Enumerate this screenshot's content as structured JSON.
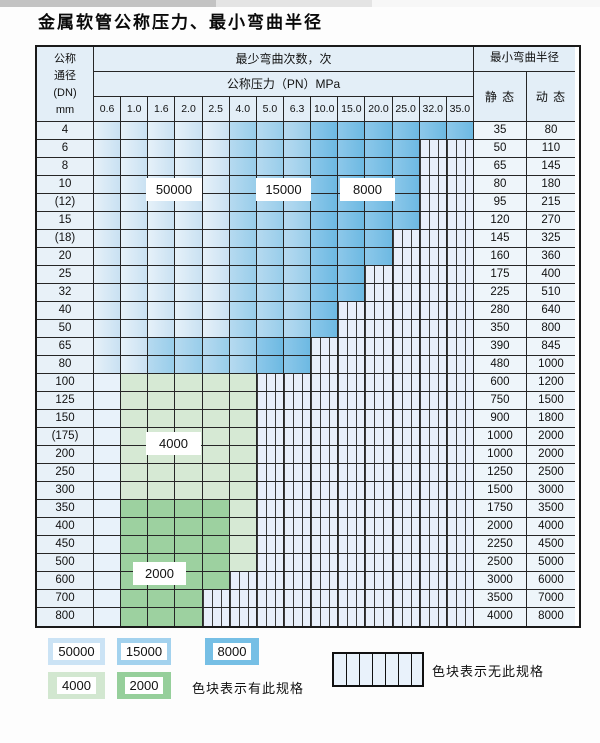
{
  "title": "金属软管公称压力、最小弯曲半径",
  "table": {
    "corner_header": [
      "公称",
      "通径",
      "(DN)",
      "mm"
    ],
    "bend_cycles_header": "最少弯曲次数，次",
    "pressure_header": "公称压力（PN）MPa",
    "radius_header": "最小弯曲半径",
    "static_label": "静 态",
    "dynamic_label": "动 态",
    "pressure_columns": [
      "0.6",
      "1.0",
      "1.6",
      "2.0",
      "2.5",
      "4.0",
      "5.0",
      "6.3",
      "10.0",
      "15.0",
      "20.0",
      "25.0",
      "32.0",
      "35.0"
    ],
    "zone_meaning": {
      "b1": "50000",
      "b2": "15000",
      "b3": "8000",
      "g1": "4000",
      "g2": "2000",
      "p": "50000",
      "x": "无此规格"
    },
    "overlays": [
      {
        "value": "50000"
      },
      {
        "value": "15000"
      },
      {
        "value": "8000"
      },
      {
        "value": "4000"
      },
      {
        "value": "2000"
      }
    ],
    "rows": [
      {
        "dn": "4",
        "cells": [
          "b1",
          "b1",
          "b1",
          "b1",
          "b1",
          "b2",
          "b2",
          "b2",
          "b3",
          "b3",
          "b3",
          "b3",
          "b3",
          "b3"
        ],
        "static": "35",
        "dynamic": "80"
      },
      {
        "dn": "6",
        "cells": [
          "b1",
          "b1",
          "b1",
          "b1",
          "b1",
          "b2",
          "b2",
          "b2",
          "b3",
          "b3",
          "b3",
          "b3",
          "x",
          "x"
        ],
        "static": "50",
        "dynamic": "110"
      },
      {
        "dn": "8",
        "cells": [
          "b1",
          "b1",
          "b1",
          "b1",
          "b1",
          "b2",
          "b2",
          "b2",
          "b3",
          "b3",
          "b3",
          "b3",
          "x",
          "x"
        ],
        "static": "65",
        "dynamic": "145"
      },
      {
        "dn": "10",
        "cells": [
          "b1",
          "b1",
          "b1",
          "b1",
          "b1",
          "b2",
          "b2",
          "b2",
          "b3",
          "b3",
          "b3",
          "b3",
          "x",
          "x"
        ],
        "static": "80",
        "dynamic": "180"
      },
      {
        "dn": "(12)",
        "cells": [
          "b1",
          "b1",
          "b1",
          "b1",
          "b1",
          "b2",
          "b2",
          "b2",
          "b3",
          "b3",
          "b3",
          "b3",
          "x",
          "x"
        ],
        "static": "95",
        "dynamic": "215"
      },
      {
        "dn": "15",
        "cells": [
          "b1",
          "b1",
          "b1",
          "b1",
          "b1",
          "b2",
          "b2",
          "b2",
          "b3",
          "b3",
          "b3",
          "b3",
          "x",
          "x"
        ],
        "static": "120",
        "dynamic": "270"
      },
      {
        "dn": "(18)",
        "cells": [
          "b1",
          "b1",
          "b1",
          "b1",
          "b1",
          "b2",
          "b2",
          "b2",
          "b3",
          "b3",
          "b3",
          "x",
          "x",
          "x"
        ],
        "static": "145",
        "dynamic": "325"
      },
      {
        "dn": "20",
        "cells": [
          "b1",
          "b1",
          "b1",
          "b1",
          "b1",
          "b2",
          "b2",
          "b2",
          "b3",
          "b3",
          "b3",
          "x",
          "x",
          "x"
        ],
        "static": "160",
        "dynamic": "360"
      },
      {
        "dn": "25",
        "cells": [
          "b1",
          "b1",
          "b1",
          "b1",
          "b1",
          "b2",
          "b2",
          "b2",
          "b3",
          "b3",
          "x",
          "x",
          "x",
          "x"
        ],
        "static": "175",
        "dynamic": "400"
      },
      {
        "dn": "32",
        "cells": [
          "b1",
          "b1",
          "b1",
          "b1",
          "b1",
          "b2",
          "b2",
          "b2",
          "b3",
          "b3",
          "x",
          "x",
          "x",
          "x"
        ],
        "static": "225",
        "dynamic": "510"
      },
      {
        "dn": "40",
        "cells": [
          "b1",
          "b1",
          "b1",
          "b1",
          "b1",
          "b2",
          "b2",
          "b2",
          "b3",
          "x",
          "x",
          "x",
          "x",
          "x"
        ],
        "static": "280",
        "dynamic": "640"
      },
      {
        "dn": "50",
        "cells": [
          "b1",
          "b1",
          "b1",
          "b1",
          "b1",
          "b2",
          "b2",
          "b2",
          "b3",
          "x",
          "x",
          "x",
          "x",
          "x"
        ],
        "static": "350",
        "dynamic": "800"
      },
      {
        "dn": "65",
        "cells": [
          "b1",
          "b1",
          "b2",
          "b2",
          "b2",
          "b2",
          "b3",
          "b3",
          "x",
          "x",
          "x",
          "x",
          "x",
          "x"
        ],
        "static": "390",
        "dynamic": "845"
      },
      {
        "dn": "80",
        "cells": [
          "b1",
          "b1",
          "b2",
          "b2",
          "b2",
          "b2",
          "b3",
          "b3",
          "x",
          "x",
          "x",
          "x",
          "x",
          "x"
        ],
        "static": "480",
        "dynamic": "1000"
      },
      {
        "dn": "100",
        "cells": [
          "p",
          "g1",
          "g1",
          "g1",
          "g1",
          "g1",
          "x",
          "x",
          "x",
          "x",
          "x",
          "x",
          "x",
          "x"
        ],
        "static": "600",
        "dynamic": "1200"
      },
      {
        "dn": "125",
        "cells": [
          "p",
          "g1",
          "g1",
          "g1",
          "g1",
          "g1",
          "x",
          "x",
          "x",
          "x",
          "x",
          "x",
          "x",
          "x"
        ],
        "static": "750",
        "dynamic": "1500"
      },
      {
        "dn": "150",
        "cells": [
          "p",
          "g1",
          "g1",
          "g1",
          "g1",
          "g1",
          "x",
          "x",
          "x",
          "x",
          "x",
          "x",
          "x",
          "x"
        ],
        "static": "900",
        "dynamic": "1800"
      },
      {
        "dn": "(175)",
        "cells": [
          "p",
          "g1",
          "g1",
          "g1",
          "g1",
          "g1",
          "x",
          "x",
          "x",
          "x",
          "x",
          "x",
          "x",
          "x"
        ],
        "static": "1000",
        "dynamic": "2000"
      },
      {
        "dn": "200",
        "cells": [
          "p",
          "g1",
          "g1",
          "g1",
          "g1",
          "g1",
          "x",
          "x",
          "x",
          "x",
          "x",
          "x",
          "x",
          "x"
        ],
        "static": "1000",
        "dynamic": "2000"
      },
      {
        "dn": "250",
        "cells": [
          "p",
          "g1",
          "g1",
          "g1",
          "g1",
          "g1",
          "x",
          "x",
          "x",
          "x",
          "x",
          "x",
          "x",
          "x"
        ],
        "static": "1250",
        "dynamic": "2500"
      },
      {
        "dn": "300",
        "cells": [
          "p",
          "g1",
          "g1",
          "g1",
          "g1",
          "g1",
          "x",
          "x",
          "x",
          "x",
          "x",
          "x",
          "x",
          "x"
        ],
        "static": "1500",
        "dynamic": "3000"
      },
      {
        "dn": "350",
        "cells": [
          "p",
          "g2",
          "g2",
          "g2",
          "g2",
          "g1",
          "x",
          "x",
          "x",
          "x",
          "x",
          "x",
          "x",
          "x"
        ],
        "static": "1750",
        "dynamic": "3500"
      },
      {
        "dn": "400",
        "cells": [
          "p",
          "g2",
          "g2",
          "g2",
          "g2",
          "g1",
          "x",
          "x",
          "x",
          "x",
          "x",
          "x",
          "x",
          "x"
        ],
        "static": "2000",
        "dynamic": "4000"
      },
      {
        "dn": "450",
        "cells": [
          "p",
          "g2",
          "g2",
          "g2",
          "g2",
          "g1",
          "x",
          "x",
          "x",
          "x",
          "x",
          "x",
          "x",
          "x"
        ],
        "static": "2250",
        "dynamic": "4500"
      },
      {
        "dn": "500",
        "cells": [
          "p",
          "g2",
          "g2",
          "g2",
          "g2",
          "g1",
          "x",
          "x",
          "x",
          "x",
          "x",
          "x",
          "x",
          "x"
        ],
        "static": "2500",
        "dynamic": "5000"
      },
      {
        "dn": "600",
        "cells": [
          "p",
          "g2",
          "g2",
          "g2",
          "g2",
          "x",
          "x",
          "x",
          "x",
          "x",
          "x",
          "x",
          "x",
          "x"
        ],
        "static": "3000",
        "dynamic": "6000"
      },
      {
        "dn": "700",
        "cells": [
          "p",
          "g2",
          "g2",
          "g2",
          "x",
          "x",
          "x",
          "x",
          "x",
          "x",
          "x",
          "x",
          "x",
          "x"
        ],
        "static": "3500",
        "dynamic": "7000"
      },
      {
        "dn": "800",
        "cells": [
          "p",
          "g2",
          "g2",
          "g2",
          "x",
          "x",
          "x",
          "x",
          "x",
          "x",
          "x",
          "x",
          "x",
          "x"
        ],
        "static": "4000",
        "dynamic": "8000"
      }
    ]
  },
  "legend": {
    "swatches": [
      {
        "value": "50000",
        "color": "#cbe3f5"
      },
      {
        "value": "15000",
        "color": "#a3d2ee"
      },
      {
        "value": "8000",
        "color": "#76bfe5"
      },
      {
        "value": "4000",
        "color": "#d2e7d0"
      },
      {
        "value": "2000",
        "color": "#96cf9b"
      }
    ],
    "available_note": "色块表示有此规格",
    "unavailable_note": "色块表示无此规格"
  }
}
